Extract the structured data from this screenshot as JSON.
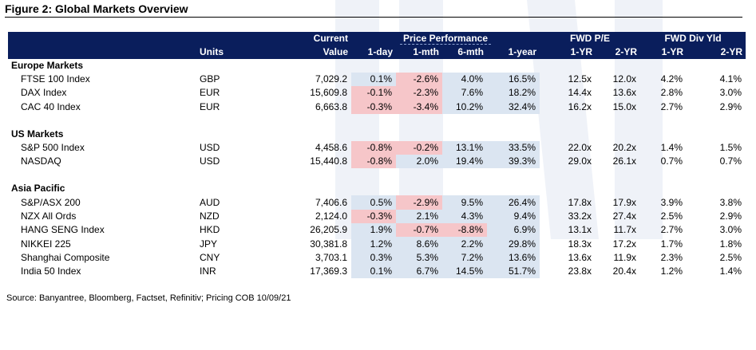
{
  "figure_title": "Figure 2: Global Markets Overview",
  "header": {
    "units": "Units",
    "current_top": "Current",
    "current_bottom": "Value",
    "price_performance": "Price Performance",
    "fwd_pe": "FWD P/E",
    "fwd_div_yld": "FWD Div Yld",
    "col_1day": "1-day",
    "col_1mth": "1-mth",
    "col_6mth": "6-mth",
    "col_1year": "1-year",
    "col_pe_1yr": "1-YR",
    "col_pe_2yr": "2-YR",
    "col_dy_1yr": "1-YR",
    "col_dy_2yr": "2-YR"
  },
  "sections": [
    {
      "title": "Europe Markets",
      "rows": [
        {
          "name": "FTSE 100 Index",
          "units": "GBP",
          "value": "7,029.2",
          "d1": "0.1%",
          "m1": "-2.6%",
          "m6": "4.0%",
          "y1": "16.5%",
          "pe1": "12.5x",
          "pe2": "12.0x",
          "dy1": "4.2%",
          "dy2": "4.1%"
        },
        {
          "name": "DAX Index",
          "units": "EUR",
          "value": "15,609.8",
          "d1": "-0.1%",
          "m1": "-2.3%",
          "m6": "7.6%",
          "y1": "18.2%",
          "pe1": "14.4x",
          "pe2": "13.6x",
          "dy1": "2.8%",
          "dy2": "3.0%"
        },
        {
          "name": "CAC 40 Index",
          "units": "EUR",
          "value": "6,663.8",
          "d1": "-0.3%",
          "m1": "-3.4%",
          "m6": "10.2%",
          "y1": "32.4%",
          "pe1": "16.2x",
          "pe2": "15.0x",
          "dy1": "2.7%",
          "dy2": "2.9%"
        }
      ]
    },
    {
      "title": "US Markets",
      "rows": [
        {
          "name": "S&P 500 Index",
          "units": "USD",
          "value": "4,458.6",
          "d1": "-0.8%",
          "m1": "-0.2%",
          "m6": "13.1%",
          "y1": "33.5%",
          "pe1": "22.0x",
          "pe2": "20.2x",
          "dy1": "1.4%",
          "dy2": "1.5%"
        },
        {
          "name": "NASDAQ",
          "units": "USD",
          "value": "15,440.8",
          "d1": "-0.8%",
          "m1": "2.0%",
          "m6": "19.4%",
          "y1": "39.3%",
          "pe1": "29.0x",
          "pe2": "26.1x",
          "dy1": "0.7%",
          "dy2": "0.7%"
        }
      ]
    },
    {
      "title": "Asia Pacific",
      "rows": [
        {
          "name": "S&P/ASX 200",
          "units": "AUD",
          "value": "7,406.6",
          "d1": "0.5%",
          "m1": "-2.9%",
          "m6": "9.5%",
          "y1": "26.4%",
          "pe1": "17.8x",
          "pe2": "17.9x",
          "dy1": "3.9%",
          "dy2": "3.8%"
        },
        {
          "name": "NZX All Ords",
          "units": "NZD",
          "value": "2,124.0",
          "d1": "-0.3%",
          "m1": "2.1%",
          "m6": "4.3%",
          "y1": "9.4%",
          "pe1": "33.2x",
          "pe2": "27.4x",
          "dy1": "2.5%",
          "dy2": "2.9%"
        },
        {
          "name": "HANG SENG Index",
          "units": "HKD",
          "value": "26,205.9",
          "d1": "1.9%",
          "m1": "-0.7%",
          "m6": "-8.8%",
          "y1": "6.9%",
          "pe1": "13.1x",
          "pe2": "11.7x",
          "dy1": "2.7%",
          "dy2": "3.0%"
        },
        {
          "name": "NIKKEI 225",
          "units": "JPY",
          "value": "30,381.8",
          "d1": "1.2%",
          "m1": "8.6%",
          "m6": "2.2%",
          "y1": "29.8%",
          "pe1": "18.3x",
          "pe2": "17.2x",
          "dy1": "1.7%",
          "dy2": "1.8%"
        },
        {
          "name": "Shanghai Composite",
          "units": "CNY",
          "value": "3,703.1",
          "d1": "0.3%",
          "m1": "5.3%",
          "m6": "7.2%",
          "y1": "13.6%",
          "pe1": "13.6x",
          "pe2": "11.9x",
          "dy1": "2.3%",
          "dy2": "2.5%"
        },
        {
          "name": "India 50 Index",
          "units": "INR",
          "value": "17,369.3",
          "d1": "0.1%",
          "m1": "6.7%",
          "m6": "14.5%",
          "y1": "51.7%",
          "pe1": "23.8x",
          "pe2": "20.4x",
          "dy1": "1.2%",
          "dy2": "1.4%"
        }
      ]
    }
  ],
  "source": "Source: Banyantree, Bloomberg, Factset, Refinitiv; Pricing COB 10/09/21",
  "colors": {
    "header_bg": "#0a1e5c",
    "positive_cell": "#dbe5f1",
    "negative_cell": "#f6c6c9"
  }
}
